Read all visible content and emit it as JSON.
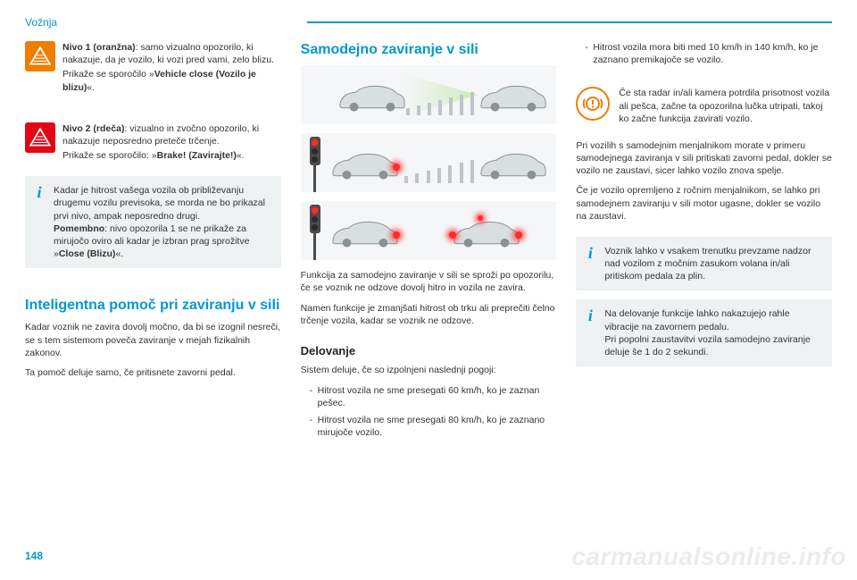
{
  "header": {
    "section_tab": "Vožnja",
    "page_number": "148",
    "watermark": "carmanualsonline.info"
  },
  "colors": {
    "accent": "#0097d6",
    "orange": "#ef7d00",
    "red": "#e30613",
    "info_bg": "#eef1f2",
    "diagram_bg": "#f4f6f7",
    "car_fill": "#d9dee0",
    "car_stroke": "#8b9296"
  },
  "col1": {
    "warn1": {
      "title": "Nivo 1 (oranžna)",
      "body": ": samo vizualno opozorilo, ki nakazuje, da je vozilo, ki vozi pred vami, zelo blizu.",
      "msg_lead": "Prikaže se sporočilo »",
      "msg_bold": "Vehicle close (Vozilo je blizu)",
      "msg_tail": "«."
    },
    "warn2": {
      "title": "Nivo 2 (rdeča)",
      "body": ": vizualno in zvočno opozorilo, ki nakazuje neposredno preteče trčenje.",
      "msg_lead": "Prikaže se sporočilo: »",
      "msg_bold": "Brake! (Zavirajte!)",
      "msg_tail": "«."
    },
    "info": {
      "p1": "Kadar je hitrost vašega vozila ob približevanju drugemu vozilu previsoka, se morda ne bo prikazal prvi nivo, ampak neposredno drugi.",
      "p2_bold": "Pomembno",
      "p2_body": ": nivo opozorila 1 se ne prikaže za mirujočo oviro ali kadar je izbran prag sprožitve »",
      "p2_bold2": "Close (Blizu)",
      "p2_tail": "«."
    },
    "h1": "Inteligentna pomoč pri zaviranju v sili",
    "p1": "Kadar voznik ne zavira dovolj močno, da bi se izognil nesreči, se s tem sistemom poveča zaviranje v mejah fizikalnih zakonov.",
    "p2": "Ta pomoč deluje samo, če pritisnete zavorni pedal."
  },
  "col2": {
    "h1": "Samodejno zaviranje v sili",
    "p1": "Funkcija za samodejno zaviranje v sili se sproži po opozorilu, če se voznik ne odzove dovolj hitro in vozila ne zavira.",
    "p2": "Namen funkcije je zmanjšati hitrost ob trku ali preprečiti čelno trčenje vozila, kadar se voznik ne odzove.",
    "h2": "Delovanje",
    "p3": "Sistem deluje, če so izpolnjeni naslednji pogoji:",
    "bullets": [
      "Hitrost vozila ne sme presegati 60 km/h, ko je zaznan pešec.",
      "Hitrost vozila ne sme presegati 80 km/h, ko je zaznano mirujoče vozilo."
    ],
    "diagrams": {
      "sensor_bar_heights": [
        8,
        11,
        14,
        17,
        20,
        23,
        26
      ]
    }
  },
  "col3": {
    "bullet1": "Hitrost vozila mora biti med 10 km/h in 140 km/h, ko je zaznano premikajoče se vozilo.",
    "radar": "Če sta radar in/ali kamera potrdila prisotnost vozila ali pešca, začne ta opozorilna lučka utripati, takoj ko začne funkcija zavirati vozilo.",
    "p1": "Pri vozilih s samodejnim menjalnikom morate v primeru samodejnega zaviranja v sili pritiskati zavorni pedal, dokler se vozilo ne zaustavi, sicer lahko vozilo znova spelje.",
    "p2": "Če je vozilo opremljeno z ročnim menjalnikom, se lahko pri samodejnem zaviranju v sili motor ugasne, dokler se vozilo na zaustavi.",
    "info1": "Voznik lahko v vsakem trenutku prevzame nadzor nad vozilom z močnim zasukom volana in/ali pritiskom pedala za plin.",
    "info2a": "Na delovanje funkcije lahko nakazujejo rahle vibracije na zavornem pedalu.",
    "info2b": "Pri popolni zaustavitvi vozila samodejno zaviranje deluje še 1 do 2 sekundi."
  }
}
